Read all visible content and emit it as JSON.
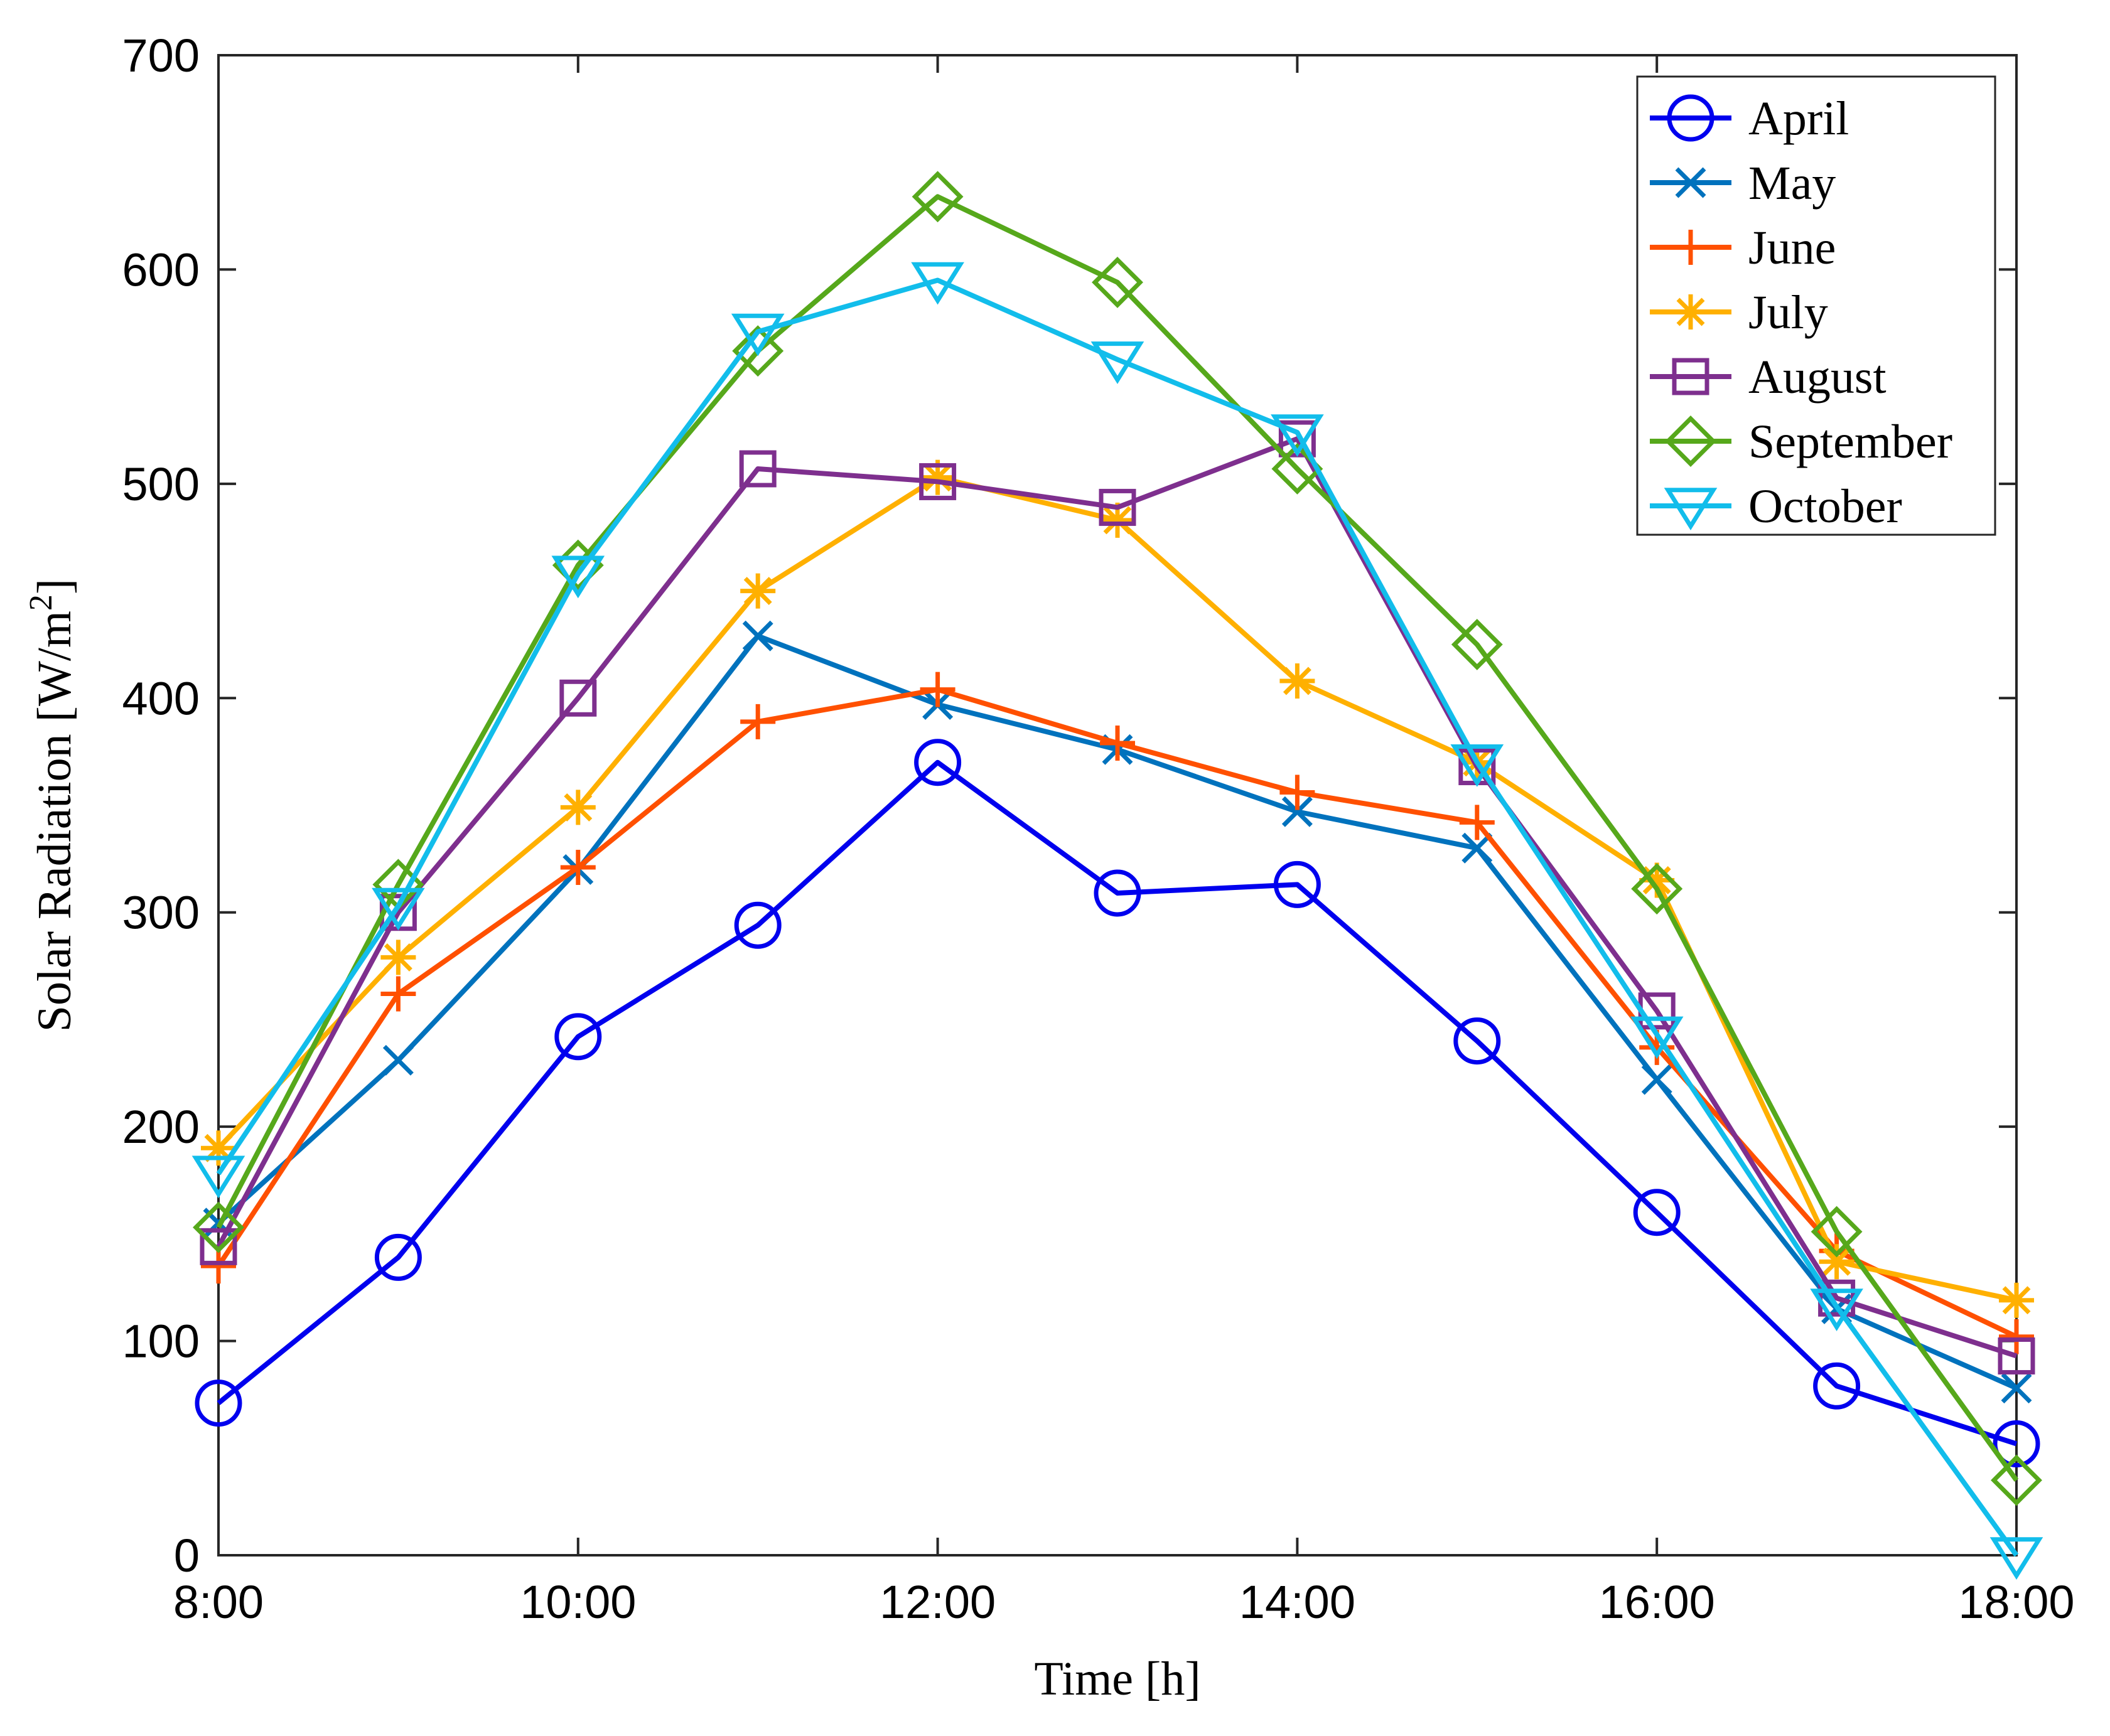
{
  "chart_data": {
    "type": "line",
    "title": "",
    "xlabel": "Time  [h]",
    "ylabel": "Solar Radiation  [W/m",
    "ylabel_sup": "2",
    "ylabel_end": "]",
    "x": [
      8,
      9,
      10,
      11,
      12,
      13,
      14,
      15,
      16,
      17,
      18
    ],
    "xlim": [
      8,
      18
    ],
    "ylim": [
      0,
      700
    ],
    "xticks": [
      8,
      10,
      12,
      14,
      16,
      18
    ],
    "xtick_labels": [
      "8:00",
      "10:00",
      "12:00",
      "14:00",
      "16:00",
      "18:00"
    ],
    "yticks": [
      0,
      100,
      200,
      300,
      400,
      500,
      600,
      700
    ],
    "ytick_labels": [
      "0",
      "100",
      "200",
      "300",
      "400",
      "500",
      "600",
      "700"
    ],
    "grid": false,
    "legend_position": "top-right",
    "series": [
      {
        "name": "April",
        "color": "#0000ee",
        "marker": "circle",
        "values": [
          71,
          139,
          242,
          294,
          370,
          309,
          313,
          240,
          160,
          79,
          52
        ]
      },
      {
        "name": "May",
        "color": "#0072bd",
        "marker": "x",
        "values": [
          155,
          231,
          320,
          429,
          397,
          376,
          347,
          330,
          222,
          115,
          78
        ]
      },
      {
        "name": "June",
        "color": "#ff5000",
        "marker": "plus",
        "values": [
          135,
          262,
          321,
          389,
          404,
          379,
          356,
          342,
          237,
          142,
          102
        ]
      },
      {
        "name": "July",
        "color": "#ffb000",
        "marker": "asterisk",
        "values": [
          190,
          279,
          349,
          450,
          503,
          483,
          408,
          370,
          315,
          137,
          119
        ]
      },
      {
        "name": "August",
        "color": "#7e2f8e",
        "marker": "square",
        "values": [
          144,
          300,
          400,
          507,
          501,
          489,
          521,
          368,
          254,
          120,
          93
        ]
      },
      {
        "name": "September",
        "color": "#56a81b",
        "marker": "diamond",
        "values": [
          153,
          313,
          462,
          562,
          634,
          594,
          507,
          425,
          311,
          151,
          35
        ]
      },
      {
        "name": "October",
        "color": "#12bdeb",
        "marker": "triangle-down",
        "values": [
          178,
          303,
          458,
          571,
          595,
          558,
          524,
          370,
          243,
          116,
          0
        ]
      }
    ]
  }
}
